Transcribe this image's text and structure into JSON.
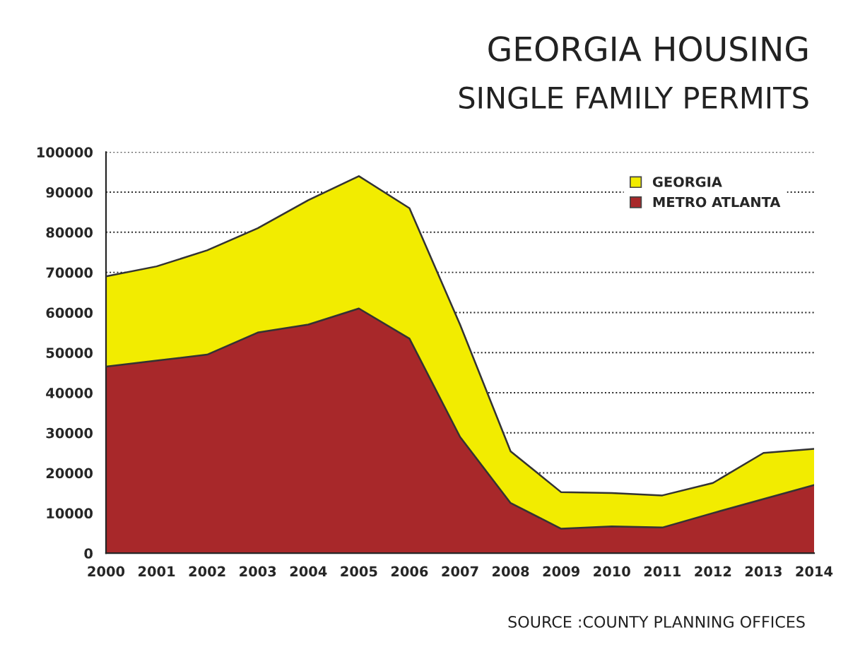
{
  "chart_data": {
    "type": "area",
    "title": "GEORGIA HOUSING",
    "subtitle": "SINGLE FAMILY PERMITS",
    "x": [
      2000,
      2001,
      2002,
      2003,
      2004,
      2005,
      2006,
      2007,
      2008,
      2009,
      2010,
      2011,
      2012,
      2013,
      2014
    ],
    "series": [
      {
        "name": "GEORGIA",
        "color": "#f2ec00",
        "values": [
          69000,
          71500,
          75500,
          81000,
          88000,
          94000,
          86000,
          57000,
          25400,
          15200,
          15000,
          14400,
          17500,
          25000,
          26000
        ]
      },
      {
        "name": "METRO ATLANTA",
        "color": "#a8282a",
        "values": [
          46500,
          48000,
          49500,
          55000,
          57000,
          61000,
          53500,
          29000,
          12500,
          6100,
          6700,
          6400,
          10000,
          13500,
          17000
        ]
      }
    ],
    "xlim": [
      2000,
      2014
    ],
    "xticks": [
      2000,
      2001,
      2002,
      2003,
      2004,
      2005,
      2006,
      2007,
      2008,
      2009,
      2010,
      2011,
      2012,
      2013,
      2014
    ],
    "ylim": [
      0,
      100000
    ],
    "yticks": [
      0,
      10000,
      20000,
      30000,
      40000,
      50000,
      60000,
      70000,
      80000,
      90000,
      100000
    ],
    "grid": "y",
    "legend": "top right",
    "annotations": [
      "SOURCE :COUNTY PLANNING OFFICES"
    ]
  }
}
